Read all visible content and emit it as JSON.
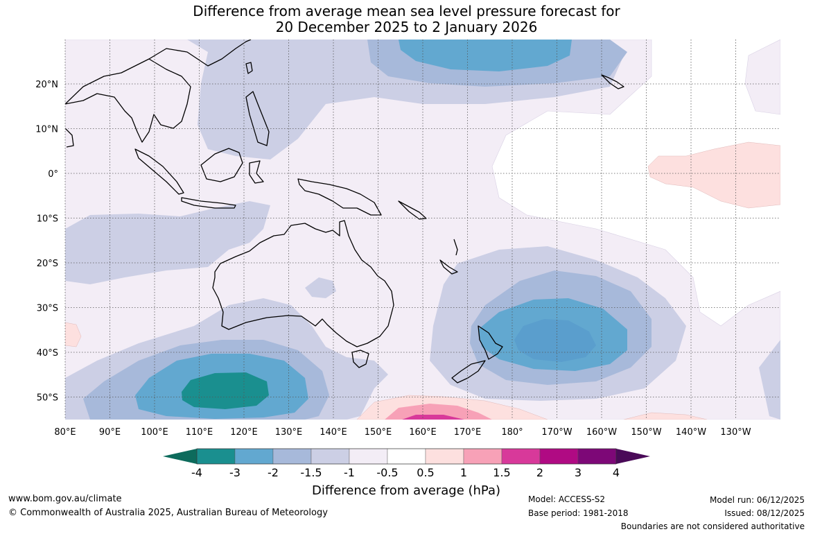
{
  "title": {
    "line1": "Difference from average mean sea level pressure forecast for",
    "line2": "20 December 2025 to 2 January 2026"
  },
  "axes": {
    "lon_labels": [
      "80°E",
      "90°E",
      "100°E",
      "110°E",
      "120°E",
      "130°E",
      "140°E",
      "150°E",
      "160°E",
      "170°E",
      "180°",
      "170°W",
      "160°W",
      "150°W",
      "140°W",
      "130°W"
    ],
    "lat_labels": [
      "20°N",
      "10°N",
      "0°",
      "10°S",
      "20°S",
      "30°S",
      "40°S",
      "50°S"
    ]
  },
  "colorbar": {
    "title": "Difference from average (hPa)",
    "ticks": [
      "-4",
      "-3",
      "-2",
      "-1.5",
      "-1",
      "-0.5",
      "0.5",
      "1",
      "1.5",
      "2",
      "3",
      "4"
    ],
    "low_extend_color": "#0d6b5c",
    "high_extend_color": "#4a0a58",
    "colors": [
      "#1a8f8f",
      "#62a8d0",
      "#a7b9da",
      "#cccfe5",
      "#f3edf6",
      "#ffffff",
      "#fde0df",
      "#f7a1b7",
      "#d8399a",
      "#b00a83",
      "#7d0877"
    ]
  },
  "footer": {
    "website": "www.bom.gov.au/climate",
    "copyright": "© Commonwealth of Australia 2025, Australian Bureau of Meteorology",
    "model": "Model: ACCESS-S2",
    "base_period": "Base period: 1981-2018",
    "model_run": "Model run: 06/12/2025",
    "issued": "Issued: 08/12/2025",
    "disclaimer": "Boundaries are not considered authoritative"
  }
}
